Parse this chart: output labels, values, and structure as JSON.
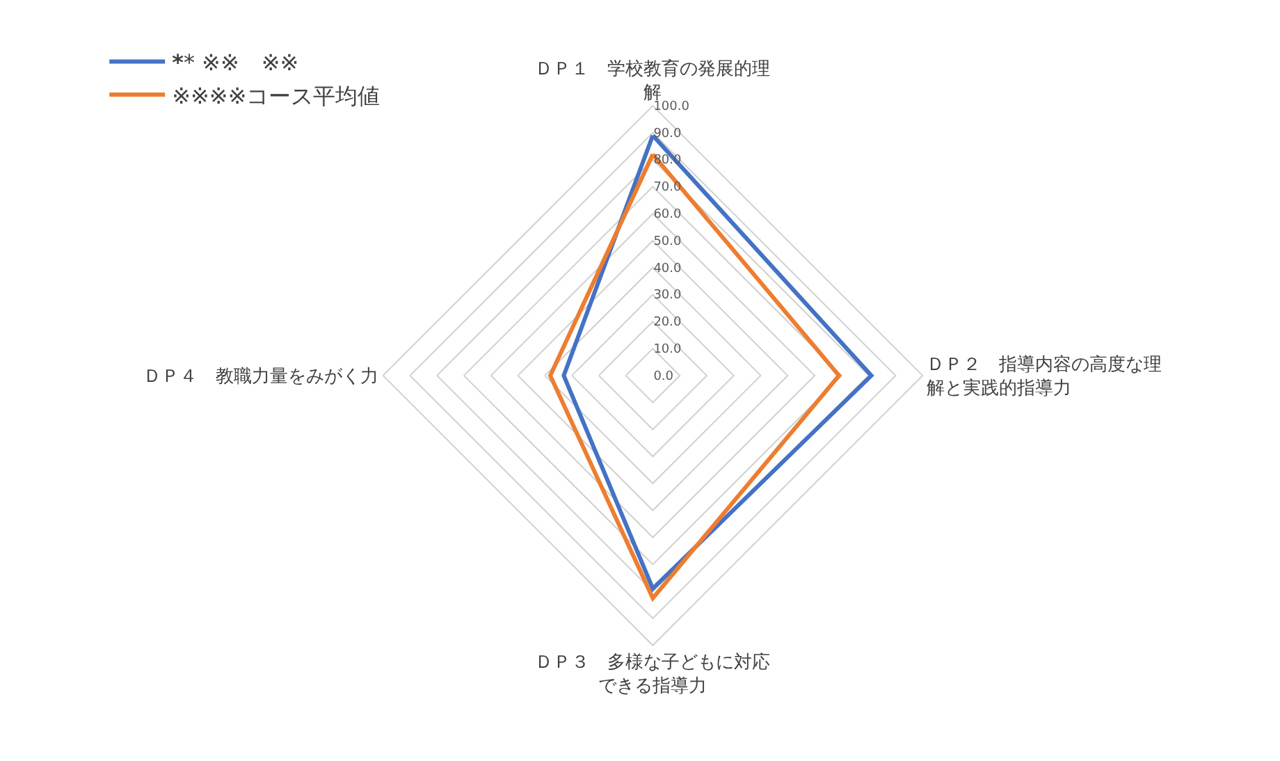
{
  "chart_data": {
    "type": "radar",
    "categories": [
      "ＤＰ１　学校教育の発展的理解",
      "ＤＰ２　指導内容の高度な理解と実践的指導力",
      "ＤＰ３　多様な子どもに対応できる指導力",
      "ＤＰ４　教職力量をみがく力"
    ],
    "series": [
      {
        "name": "****** ※※　※※",
        "color": "#4472c4",
        "values": [
          89,
          81,
          79,
          33
        ]
      },
      {
        "name": "※※※※コース平均値",
        "color": "#ed7d31",
        "values": [
          82,
          69,
          82.5,
          38
        ]
      }
    ],
    "ylim": [
      0,
      100
    ],
    "yticks": [
      {
        "value": 0,
        "label": "0.0"
      },
      {
        "value": 10,
        "label": "10.0"
      },
      {
        "value": 20,
        "label": "20.0"
      },
      {
        "value": 30,
        "label": "30.0"
      },
      {
        "value": 40,
        "label": "40.0"
      },
      {
        "value": 50,
        "label": "50.0"
      },
      {
        "value": 60,
        "label": "60.0"
      },
      {
        "value": 70,
        "label": "70.0"
      },
      {
        "value": 80,
        "label": "80.0"
      },
      {
        "value": 90,
        "label": "90.0"
      },
      {
        "value": 100,
        "label": "100.0"
      }
    ],
    "grid": true,
    "legend": "top left",
    "marker": "none",
    "line_style": "solid"
  }
}
